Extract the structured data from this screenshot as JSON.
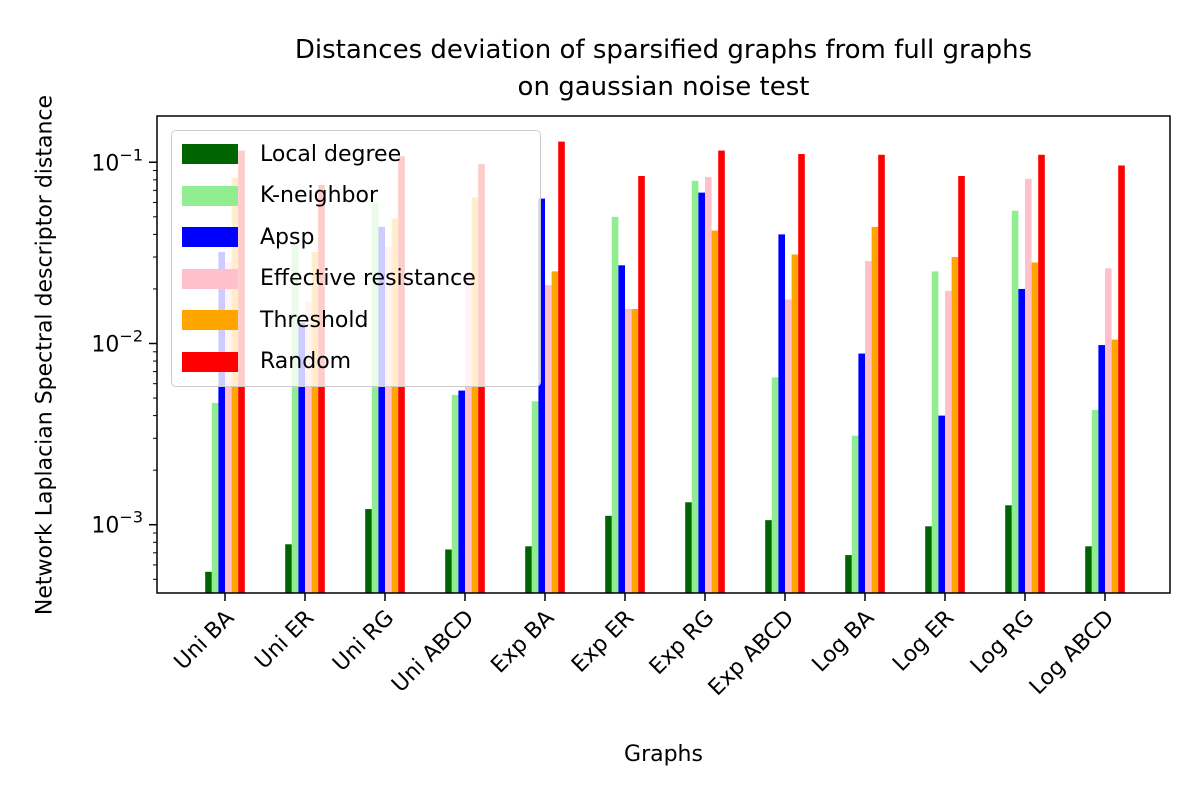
{
  "chart_data": {
    "type": "bar",
    "title": [
      "Distances deviation of sparsified graphs from full graphs",
      "on gaussian noise test"
    ],
    "xlabel": "Graphs",
    "ylabel": "Network Laplacian Spectral descriptor distance",
    "yscale": "log",
    "ylim": [
      0.00042,
      0.18
    ],
    "yticks": [
      {
        "value": 0.1,
        "base": "10",
        "exp": "−1"
      },
      {
        "value": 0.01,
        "base": "10",
        "exp": "−2"
      },
      {
        "value": 0.001,
        "base": "10",
        "exp": "−3"
      }
    ],
    "legend_position": "upper-left",
    "categories": [
      "Uni BA",
      "Uni ER",
      "Uni RG",
      "Uni ABCD",
      "Exp BA",
      "Exp ER",
      "Exp RG",
      "Exp ABCD",
      "Log BA",
      "Log ER",
      "Log RG",
      "Log ABCD"
    ],
    "series": [
      {
        "name": "Local degree",
        "color": "#006400",
        "values": [
          0.00055,
          0.00078,
          0.00122,
          0.00073,
          0.00076,
          0.00112,
          0.00133,
          0.00106,
          0.00068,
          0.00098,
          0.00128,
          0.00076
        ]
      },
      {
        "name": "K-neighbor",
        "color": "#90EE90",
        "values": [
          0.0047,
          0.035,
          0.06,
          0.0052,
          0.0048,
          0.05,
          0.079,
          0.0065,
          0.0031,
          0.025,
          0.054,
          0.0043
        ]
      },
      {
        "name": "Apsp",
        "color": "#0000FF",
        "values": [
          0.032,
          0.013,
          0.044,
          0.0055,
          0.063,
          0.027,
          0.068,
          0.04,
          0.0088,
          0.004,
          0.02,
          0.0098
        ]
      },
      {
        "name": "Effective resistance",
        "color": "#FFC0CB",
        "values": [
          0.028,
          0.017,
          0.034,
          0.024,
          0.021,
          0.0155,
          0.083,
          0.0175,
          0.0285,
          0.0195,
          0.081,
          0.026
        ]
      },
      {
        "name": "Threshold",
        "color": "#FFA500",
        "values": [
          0.082,
          0.032,
          0.049,
          0.064,
          0.025,
          0.0155,
          0.042,
          0.031,
          0.044,
          0.03,
          0.028,
          0.0105
        ]
      },
      {
        "name": "Random",
        "color": "#FF0000",
        "values": [
          0.116,
          0.075,
          0.108,
          0.098,
          0.13,
          0.084,
          0.116,
          0.111,
          0.11,
          0.084,
          0.11,
          0.096
        ]
      }
    ]
  }
}
